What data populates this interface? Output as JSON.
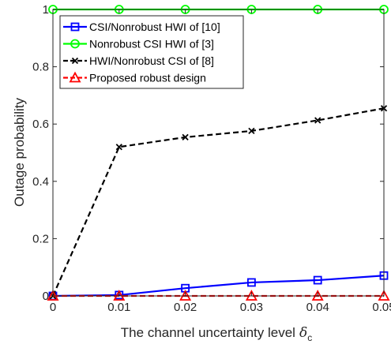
{
  "chart_data": {
    "type": "line",
    "xlabel": "The channel uncertainty level",
    "xlabel_symbol": "δ",
    "xlabel_subscript": "c",
    "ylabel": "Outage probability",
    "x": [
      0,
      0.01,
      0.02,
      0.03,
      0.04,
      0.05
    ],
    "xticks": [
      "0",
      "0.01",
      "0.02",
      "0.03",
      "0.04",
      "0.05"
    ],
    "yticks": [
      "0",
      "0.2",
      "0.4",
      "0.6",
      "0.8",
      "1"
    ],
    "xlim": [
      0,
      0.05
    ],
    "ylim": [
      0,
      1
    ],
    "grid": false,
    "legend_position": "top-left",
    "series": [
      {
        "name": "CSI/Nonrobust HWI of [10]",
        "values": [
          0.0,
          0.003,
          0.027,
          0.047,
          0.055,
          0.071
        ],
        "color": "#0000ff",
        "line_style": "solid",
        "marker": "square"
      },
      {
        "name": "Nonrobust CSI HWI of [3]",
        "values": [
          1.0,
          1.0,
          1.0,
          1.0,
          1.0,
          1.0
        ],
        "color": "#00ff00",
        "line_style": "solid",
        "marker": "circle"
      },
      {
        "name": "HWI/Nonrobust CSI of [8]",
        "values": [
          0.0,
          0.52,
          0.554,
          0.576,
          0.613,
          0.655
        ],
        "color": "#000000",
        "line_style": "dashed",
        "marker": "x"
      },
      {
        "name": "Proposed robust design",
        "values": [
          0.0,
          0.0,
          0.0,
          0.0,
          0.0,
          0.0
        ],
        "color": "#ff0000",
        "line_style": "dashed",
        "marker": "triangle"
      }
    ]
  }
}
